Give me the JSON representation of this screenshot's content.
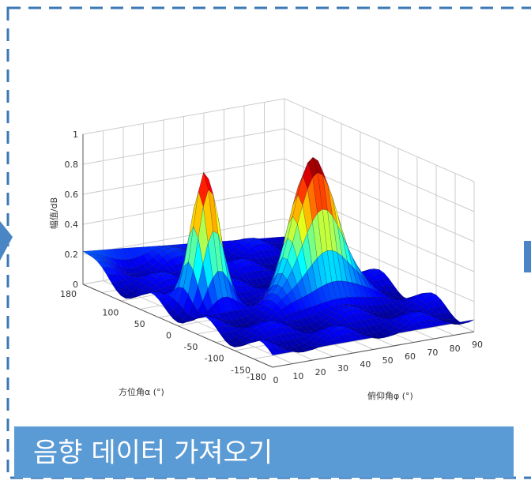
{
  "plot": {
    "z_label": "幅值/dB",
    "z_ticks": [
      "0",
      "0.2",
      "0.4",
      "0.6",
      "0.8",
      "1"
    ],
    "azimuth_ticks": [
      "180",
      "100",
      "50",
      "0",
      "-50",
      "-100",
      "-150",
      "-180"
    ],
    "elevation_ticks": [
      "0",
      "10",
      "20",
      "30",
      "40",
      "50",
      "60",
      "70",
      "80",
      "90"
    ],
    "azimuth_label": "方位角α (°)",
    "elevation_label": "俯仰角φ (°)"
  },
  "caption": "음향 데이터 가져오기"
}
